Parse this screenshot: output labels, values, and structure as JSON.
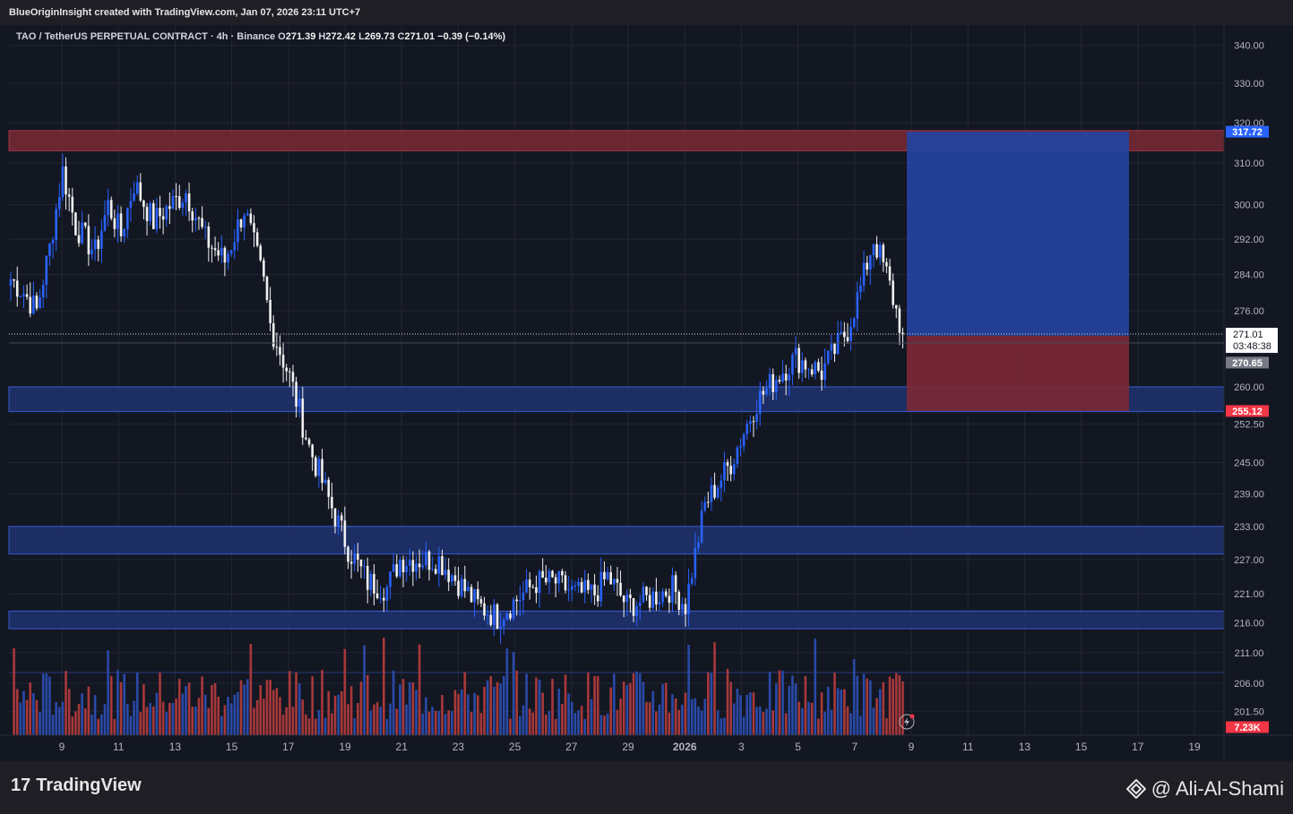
{
  "header": {
    "credit": "BlueOriginInsight created with TradingView.com, Jan 07, 2026 23:11 UTC+7"
  },
  "legend": {
    "symbol": "TAO / TetherUS PERPETUAL CONTRACT · 4h · Binance",
    "o_label": "O",
    "o": "271.39",
    "h_label": "H",
    "h": "272.42",
    "l_label": "L",
    "l": "269.73",
    "c_label": "C",
    "c": "271.01",
    "change": "−0.39 (−0.14%)"
  },
  "colors": {
    "background": "#131722",
    "bull": "#2962ff",
    "bear": "#f0f0f0",
    "vol_up": "#2a4aa8",
    "vol_down": "#a8383a",
    "red_zone": "#7a2a35",
    "blue_zone": "#1e3270",
    "position_target": "#2443a0",
    "position_stop": "#7c2937"
  },
  "chart_data": {
    "type": "candlestick",
    "timeframe": "4h",
    "y_axis": {
      "scale": "log",
      "ticks": [
        "340.00",
        "330.00",
        "320.00",
        "310.00",
        "300.00",
        "292.00",
        "284.00",
        "276.00",
        "260.00",
        "252.50",
        "245.00",
        "239.00",
        "233.00",
        "227.00",
        "221.00",
        "216.00",
        "211.00",
        "206.00",
        "201.50"
      ],
      "range": [
        199,
        345
      ]
    },
    "x_axis": {
      "ticks": [
        "9",
        "11",
        "13",
        "15",
        "17",
        "19",
        "21",
        "23",
        "25",
        "27",
        "29",
        "2026",
        "3",
        "5",
        "7",
        "9",
        "11",
        "13",
        "15",
        "17",
        "19"
      ]
    },
    "price_path": [
      [
        0,
        283
      ],
      [
        4,
        280
      ],
      [
        8,
        276
      ],
      [
        12,
        290
      ],
      [
        16,
        308
      ],
      [
        20,
        295
      ],
      [
        26,
        289
      ],
      [
        30,
        300
      ],
      [
        34,
        293
      ],
      [
        38,
        305
      ],
      [
        44,
        296
      ],
      [
        48,
        299
      ],
      [
        54,
        303
      ],
      [
        60,
        292
      ],
      [
        66,
        287
      ],
      [
        72,
        299
      ],
      [
        78,
        282
      ],
      [
        80,
        273
      ],
      [
        86,
        262
      ],
      [
        92,
        248
      ],
      [
        98,
        238
      ],
      [
        104,
        229
      ],
      [
        110,
        223
      ],
      [
        116,
        222
      ],
      [
        120,
        227
      ],
      [
        126,
        227
      ],
      [
        132,
        227
      ],
      [
        138,
        223
      ],
      [
        144,
        219
      ],
      [
        150,
        217
      ],
      [
        156,
        220
      ],
      [
        162,
        223
      ],
      [
        168,
        223
      ],
      [
        174,
        221
      ],
      [
        180,
        221
      ],
      [
        184,
        224
      ],
      [
        190,
        219
      ],
      [
        196,
        220
      ],
      [
        204,
        222
      ],
      [
        208,
        219
      ],
      [
        214,
        237
      ],
      [
        222,
        245
      ],
      [
        230,
        257
      ],
      [
        236,
        262
      ],
      [
        242,
        266
      ],
      [
        250,
        263
      ],
      [
        258,
        272
      ],
      [
        262,
        281
      ],
      [
        266,
        292
      ],
      [
        270,
        284
      ],
      [
        273,
        276
      ],
      [
        275,
        271
      ]
    ],
    "volume_label": "7.23K",
    "zones": [
      {
        "kind": "resistance",
        "from": 313,
        "to": 318
      },
      {
        "kind": "support",
        "from": 255,
        "to": 260
      },
      {
        "kind": "support",
        "from": 228,
        "to": 233
      },
      {
        "kind": "support",
        "from": 215,
        "to": 218
      }
    ],
    "position": {
      "entry": 270.65,
      "target": 317.72,
      "stop": 255.12
    },
    "labels": {
      "last_price": "271.01",
      "countdown": "03:48:38",
      "entry": "270.65",
      "target": "317.72",
      "stop": "255.12"
    }
  },
  "footer": {
    "logo_mark": "17",
    "logo_text": "TradingView",
    "author": "@ Ali-Al-Shami"
  }
}
